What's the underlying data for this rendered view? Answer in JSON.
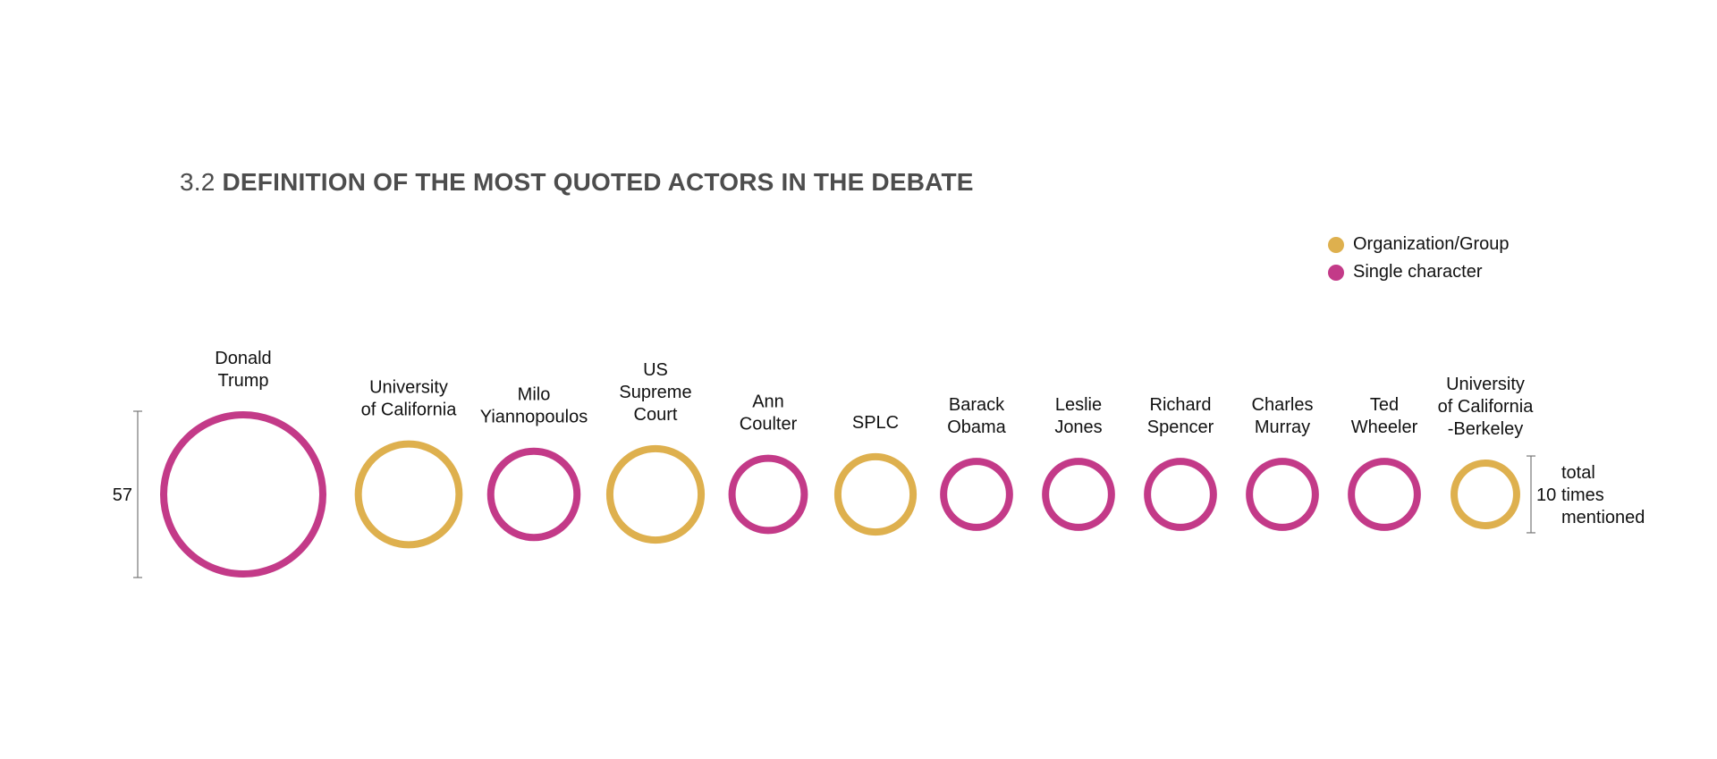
{
  "title": {
    "number": "3.2",
    "text": "DEFINITION OF THE MOST QUOTED ACTORS IN THE DEBATE"
  },
  "legend": [
    {
      "label": "Organization/Group",
      "color": "#deb04e"
    },
    {
      "label": "Single character",
      "color": "#c33a88"
    }
  ],
  "chart_data": {
    "type": "bubble",
    "title": "3.2 DEFINITION OF THE MOST QUOTED ACTORS IN THE DEBATE",
    "value_label": "total times mentioned",
    "scale_refs": [
      {
        "value": 57,
        "label": "57"
      },
      {
        "value": 10,
        "label": "10"
      }
    ],
    "scale_caption": [
      "total",
      "times",
      "mentioned"
    ],
    "categories": {
      "Organization/Group": "#deb04e",
      "Single character": "#c33a88"
    },
    "points": [
      {
        "name": [
          "Donald",
          "Trump"
        ],
        "category": "Single character",
        "value": 57
      },
      {
        "name": [
          "University",
          "of California"
        ],
        "category": "Organization/Group",
        "value": 24
      },
      {
        "name": [
          "Milo",
          "Yiannopoulos"
        ],
        "category": "Single character",
        "value": 18
      },
      {
        "name": [
          "US",
          "Supreme",
          "Court"
        ],
        "category": "Organization/Group",
        "value": 20
      },
      {
        "name": [
          "Ann",
          "Coulter"
        ],
        "category": "Single character",
        "value": 13
      },
      {
        "name": [
          "SPLC"
        ],
        "category": "Organization/Group",
        "value": 14
      },
      {
        "name": [
          "Barack",
          "Obama"
        ],
        "category": "Single character",
        "value": 11
      },
      {
        "name": [
          "Leslie",
          "Jones"
        ],
        "category": "Single character",
        "value": 11
      },
      {
        "name": [
          "Richard",
          "Spencer"
        ],
        "category": "Single character",
        "value": 11
      },
      {
        "name": [
          "Charles",
          "Murray"
        ],
        "category": "Single character",
        "value": 11
      },
      {
        "name": [
          "Ted",
          "Wheeler"
        ],
        "category": "Single character",
        "value": 11
      },
      {
        "name": [
          "University",
          "of California",
          "-Berkeley"
        ],
        "category": "Organization/Group",
        "value": 10
      }
    ]
  }
}
